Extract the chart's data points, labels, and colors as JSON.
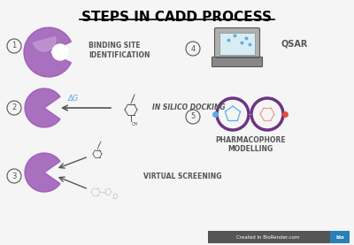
{
  "title": "STEPS IN CADD PROCESS",
  "background_color": "#f5f5f5",
  "purple": "#9B59B6",
  "purple_dark": "#6C3483",
  "purple_light": "#C39BD3",
  "gray_dark": "#555555",
  "gray_medium": "#888888",
  "gray_light": "#CCCCCC",
  "teal": "#5DADE2",
  "labels": {
    "1": "BINDING SITE\nIDENTIFICATION",
    "2": "IN SILICO DOCKING",
    "3": "VIRTUAL SCREENING",
    "4": "QSAR",
    "5": "PHARMACOPHORE\nMODELLING"
  },
  "footer_text": "Created in BioRender.com",
  "footer_bg": "#555555",
  "footer_blue": "#2980B9"
}
